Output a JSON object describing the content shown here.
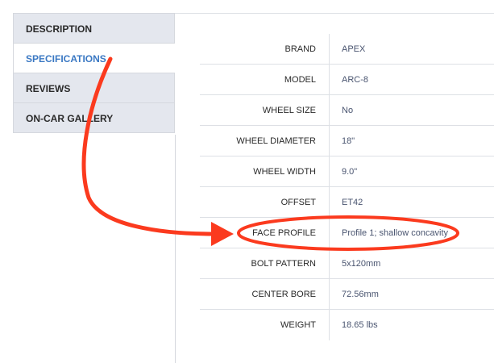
{
  "tabs": [
    {
      "label": "DESCRIPTION",
      "active": false
    },
    {
      "label": "SPECIFICATIONS",
      "active": true
    },
    {
      "label": "REVIEWS",
      "active": false
    },
    {
      "label": "ON-CAR GALLERY",
      "active": false
    }
  ],
  "specs": [
    {
      "label": "BRAND",
      "value": "APEX"
    },
    {
      "label": "MODEL",
      "value": "ARC-8"
    },
    {
      "label": "WHEEL SIZE",
      "value": "No"
    },
    {
      "label": "WHEEL DIAMETER",
      "value": "18\""
    },
    {
      "label": "WHEEL WIDTH",
      "value": "9.0\""
    },
    {
      "label": "OFFSET",
      "value": "ET42"
    },
    {
      "label": "FACE PROFILE",
      "value": "Profile 1; shallow concavity"
    },
    {
      "label": "BOLT PATTERN",
      "value": "5x120mm"
    },
    {
      "label": "CENTER BORE",
      "value": "72.56mm"
    },
    {
      "label": "WEIGHT",
      "value": "18.65 lbs"
    }
  ],
  "annotation": {
    "color": "#fb3a1e",
    "highlighted_row": "FACE PROFILE"
  },
  "colors": {
    "active_tab": "#3a78c3",
    "tab_bg": "#e4e7ee",
    "value_text": "#4a5570"
  }
}
